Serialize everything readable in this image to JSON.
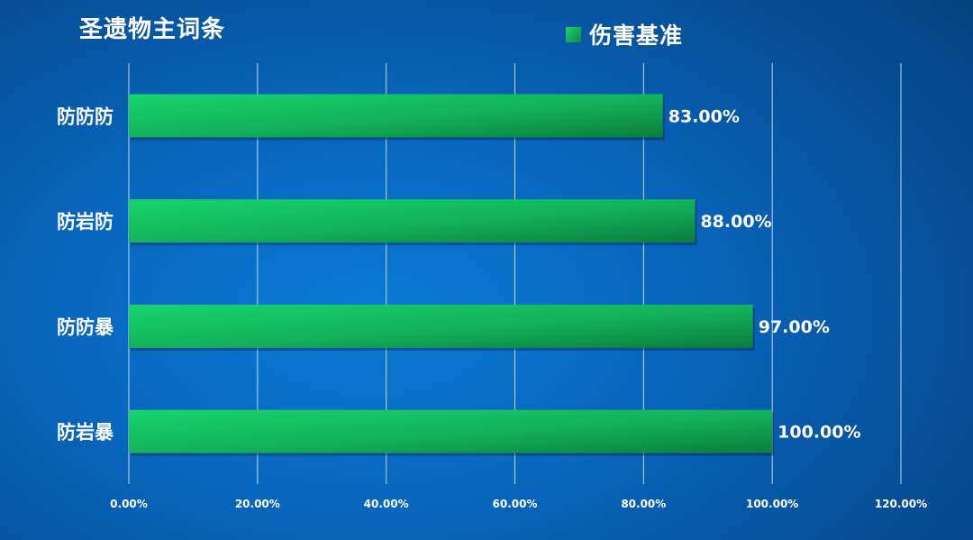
{
  "chart_data": {
    "type": "bar",
    "orientation": "horizontal",
    "title": "圣遗物主词条",
    "categories": [
      "防防防",
      "防岩防",
      "防防暴",
      "防岩暴"
    ],
    "series": [
      {
        "name": "伤害基准",
        "values": [
          83,
          88,
          97,
          100
        ],
        "color": "#15c765"
      }
    ],
    "data_labels": [
      "83.00%",
      "88.00%",
      "97.00%",
      "100.00%"
    ],
    "xlim": [
      0,
      120
    ],
    "x_ticks": [
      0,
      20,
      40,
      60,
      80,
      100,
      120
    ],
    "x_tick_labels": [
      "0.00%",
      "20.00%",
      "40.00%",
      "60.00%",
      "80.00%",
      "100.00%",
      "120.00%"
    ],
    "grid": true,
    "legend_position": "top"
  }
}
